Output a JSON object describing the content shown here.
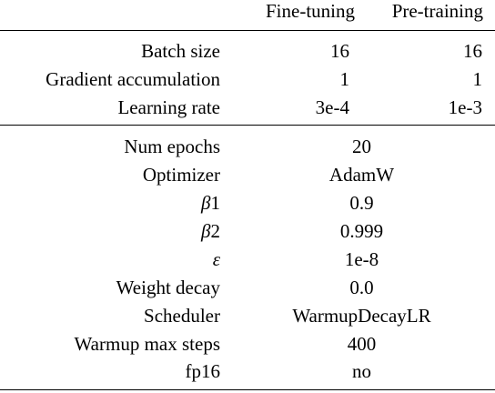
{
  "header": {
    "fine_tuning": "Fine-tuning",
    "pre_training": "Pre-training"
  },
  "split_rows": [
    {
      "label": "Batch size",
      "fine_tuning": "16",
      "pre_training": "16"
    },
    {
      "label": "Gradient accumulation",
      "fine_tuning": "1",
      "pre_training": "1"
    },
    {
      "label": "Learning rate",
      "fine_tuning": "3e-4",
      "pre_training": "1e-3"
    }
  ],
  "shared_rows": [
    {
      "label": "Num epochs",
      "value": "20"
    },
    {
      "label": "Optimizer",
      "value": "AdamW"
    },
    {
      "label_symbol": "β",
      "label_sub": "1",
      "value": "0.9"
    },
    {
      "label_symbol": "β",
      "label_sub": "2",
      "value": "0.999"
    },
    {
      "label_symbol": "ε",
      "value": "1e-8"
    },
    {
      "label": "Weight decay",
      "value": "0.0"
    },
    {
      "label": "Scheduler",
      "value": "WarmupDecayLR"
    },
    {
      "label": "Warmup max steps",
      "value": "400"
    },
    {
      "label": "fp16",
      "value": "no"
    }
  ]
}
